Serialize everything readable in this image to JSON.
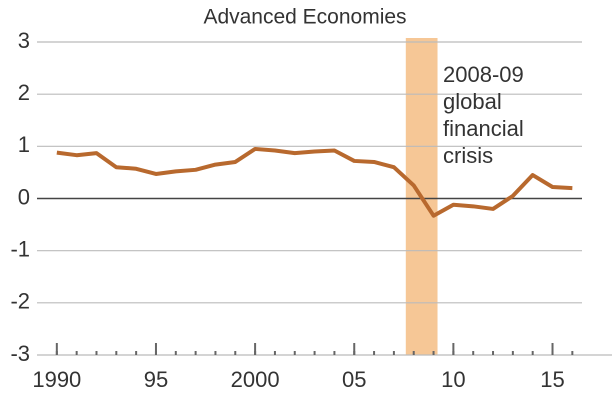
{
  "chart_data": {
    "type": "line",
    "title": "Advanced Economies",
    "annotation": [
      "2008-09",
      "global",
      "financial",
      "crisis"
    ],
    "shade": [
      2007.6,
      2009.2
    ],
    "shade_color": "#f6c796",
    "x": [
      1990,
      1991,
      1992,
      1993,
      1994,
      1995,
      1996,
      1997,
      1998,
      1999,
      2000,
      2001,
      2002,
      2003,
      2004,
      2005,
      2006,
      2007,
      2008,
      2009,
      2010,
      2011,
      2012,
      2013,
      2014,
      2015,
      2016
    ],
    "series": [
      {
        "name": "Advanced Economies",
        "color": "#b8692e",
        "values": [
          0.88,
          0.83,
          0.87,
          0.6,
          0.57,
          0.47,
          0.52,
          0.55,
          0.65,
          0.7,
          0.95,
          0.92,
          0.87,
          0.9,
          0.92,
          0.72,
          0.7,
          0.6,
          0.25,
          -0.33,
          -0.12,
          -0.15,
          -0.2,
          0.05,
          0.45,
          0.22,
          0.2
        ]
      }
    ],
    "xlim": [
      1989,
      2018
    ],
    "xticks": [
      {
        "value": 1990,
        "label": "1990"
      },
      {
        "value": 1995,
        "label": "95"
      },
      {
        "value": 2000,
        "label": "2000"
      },
      {
        "value": 2005,
        "label": "05"
      },
      {
        "value": 2010,
        "label": "10"
      },
      {
        "value": 2015,
        "label": "15"
      }
    ],
    "ylim": [
      -3,
      3
    ],
    "yticks": [
      -3,
      -2,
      -1,
      0,
      1,
      2,
      3
    ],
    "grid": true
  }
}
